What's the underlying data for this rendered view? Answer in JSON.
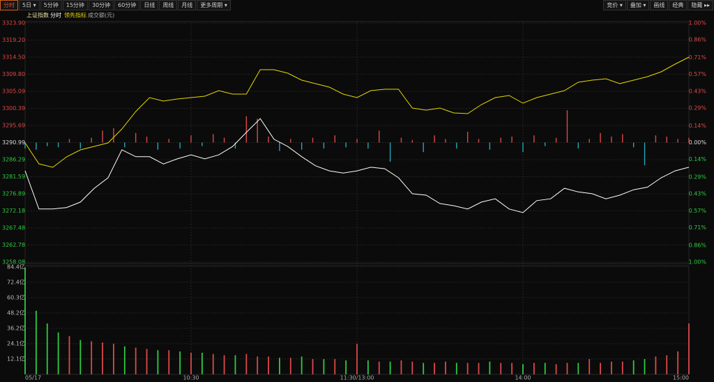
{
  "toolbar": {
    "left": [
      "分时",
      "5日 ▾",
      "5分钟",
      "15分钟",
      "30分钟",
      "60分钟",
      "日线",
      "周线",
      "月线",
      "更多周期 ▾"
    ],
    "right": [
      "竞价 ▾",
      "叠加 ▾",
      "画线",
      "经典",
      "隐藏 ▸▸"
    ]
  },
  "chart_data": {
    "type": "intraday",
    "title": "上证指数",
    "x_labels": [
      "05/17",
      "10:30",
      "11:30/13:00",
      "14:00",
      "15:00"
    ],
    "ylim": [
      3258.08,
      3323.9
    ],
    "yticks": [
      {
        "value": 3323.9,
        "label": "3323.90"
      },
      {
        "value": 3319.2,
        "label": "3319.20"
      },
      {
        "value": 3314.5,
        "label": "3314.50"
      },
      {
        "value": 3309.8,
        "label": "3309.80"
      },
      {
        "value": 3305.09,
        "label": "3305.09"
      },
      {
        "value": 3300.39,
        "label": "3300.39"
      },
      {
        "value": 3295.69,
        "label": "3295.69"
      },
      {
        "value": 3290.99,
        "label": "3290.99"
      },
      {
        "value": 3286.29,
        "label": "3286.29"
      },
      {
        "value": 3281.59,
        "label": "3281.59"
      },
      {
        "value": 3276.89,
        "label": "3276.89"
      },
      {
        "value": 3272.18,
        "label": "3272.18"
      },
      {
        "value": 3267.48,
        "label": "3267.48"
      },
      {
        "value": 3262.78,
        "label": "3262.78"
      },
      {
        "value": 3258.08,
        "label": "3258.08"
      }
    ],
    "y2lim": [
      -1,
      1
    ],
    "y2ticks": [
      {
        "value": 1,
        "label": "1.00%"
      },
      {
        "value": 0.86,
        "label": "0.86%"
      },
      {
        "value": 0.71,
        "label": "0.71%"
      },
      {
        "value": 0.57,
        "label": "0.57%"
      },
      {
        "value": 0.43,
        "label": "0.43%"
      },
      {
        "value": 0.29,
        "label": "0.29%"
      },
      {
        "value": 0.14,
        "label": "0.14%"
      },
      {
        "value": 0,
        "label": "0.00%"
      },
      {
        "value": -0.14,
        "label": "0.14%"
      },
      {
        "value": -0.29,
        "label": "0.29%"
      },
      {
        "value": -0.43,
        "label": "0.43%"
      },
      {
        "value": -0.57,
        "label": "0.57%"
      },
      {
        "value": -0.71,
        "label": "0.71%"
      },
      {
        "value": -0.86,
        "label": "0.86%"
      },
      {
        "value": -1,
        "label": "1.00%"
      }
    ],
    "up_color": "#e04848",
    "flat_color": "#dddddd",
    "down_color": "#2ecc40",
    "series": [
      {
        "name": "分时",
        "color": "#ffffff",
        "values": [
          3283.2,
          3272.7,
          3272.7,
          3273.1,
          3274.6,
          3278.4,
          3281.3,
          3289.0,
          3287.1,
          3287.1,
          3285.1,
          3286.5,
          3287.6,
          3286.5,
          3287.6,
          3289.9,
          3293.8,
          3297.6,
          3291.9,
          3289.9,
          3287.1,
          3284.6,
          3283.2,
          3282.6,
          3283.2,
          3284.2,
          3283.8,
          3281.3,
          3276.9,
          3276.5,
          3274.2,
          3273.6,
          3272.7,
          3274.6,
          3275.5,
          3272.7,
          3271.7,
          3275.0,
          3275.5,
          3278.4,
          3277.4,
          3276.9,
          3275.5,
          3276.5,
          3278.0,
          3278.7,
          3281.3,
          3283.2,
          3284.2
        ]
      },
      {
        "name": "领先指标",
        "color": "#e8d800",
        "values": [
          3290.89,
          3285.14,
          3284.18,
          3287.06,
          3288.98,
          3289.94,
          3290.89,
          3294.73,
          3299.53,
          3303.37,
          3302.41,
          3302.98,
          3303.37,
          3303.75,
          3305.29,
          3304.33,
          3304.33,
          3311.04,
          3311.04,
          3310.08,
          3308.16,
          3307.21,
          3306.25,
          3304.33,
          3303.37,
          3305.29,
          3305.67,
          3305.67,
          3300.49,
          3299.91,
          3300.49,
          3299.15,
          3298.95,
          3301.45,
          3303.37,
          3303.94,
          3301.83,
          3303.37,
          3304.33,
          3305.29,
          3307.59,
          3308.16,
          3308.55,
          3307.21,
          3308.16,
          3309.12,
          3310.47,
          3312.58,
          3314.5
        ]
      }
    ],
    "bars": {
      "axis": "y2",
      "up_color": "#e04848",
      "down_color": "#22a8b8",
      "values": [
        -0.05,
        -0.06,
        -0.03,
        -0.04,
        0.03,
        -0.05,
        0.04,
        0.1,
        0.12,
        -0.04,
        0.08,
        0.05,
        -0.06,
        0.03,
        -0.05,
        0.06,
        -0.03,
        0.07,
        0.04,
        -0.05,
        0.22,
        0.2,
        0.05,
        -0.07,
        0.03,
        -0.06,
        0.04,
        -0.05,
        0.06,
        -0.04,
        0.03,
        -0.05,
        0.1,
        -0.16,
        0.04,
        0.02,
        -0.08,
        0.06,
        0.03,
        -0.05,
        0.09,
        0.03,
        -0.06,
        0.04,
        0.05,
        -0.08,
        0.06,
        -0.03,
        0.04,
        0.27,
        -0.05,
        0.03,
        0.08,
        0.05,
        0.07,
        -0.04,
        -0.19,
        0.06,
        0.05,
        0.03,
        0.04
      ]
    },
    "volume": {
      "name": "成交额(元)",
      "up_color": "#e04848",
      "down_color": "#2ecc40",
      "ylim": [
        0,
        84.4
      ],
      "yticks": [
        {
          "value": 12.1,
          "label": "12.1亿"
        },
        {
          "value": 24.1,
          "label": "24.1亿"
        },
        {
          "value": 36.2,
          "label": "36.2亿"
        },
        {
          "value": 48.2,
          "label": "48.2亿"
        },
        {
          "value": 60.3,
          "label": "60.3亿"
        },
        {
          "value": 72.4,
          "label": "72.4亿"
        },
        {
          "value": 84.4,
          "label": "84.4亿"
        }
      ],
      "values": [
        84,
        50,
        40,
        33,
        30,
        27,
        26,
        25,
        24,
        22,
        21,
        20,
        19,
        19,
        18,
        17,
        17,
        16,
        15,
        15,
        16,
        14,
        14,
        13,
        13,
        14,
        12,
        12,
        12,
        11,
        24,
        11,
        10,
        10,
        11,
        10,
        9,
        9,
        10,
        9,
        9,
        9,
        10,
        9,
        9,
        8,
        9,
        9,
        8,
        9,
        9,
        12,
        9,
        10,
        10,
        11,
        12,
        14,
        15,
        18,
        40
      ]
    },
    "grid": true
  }
}
